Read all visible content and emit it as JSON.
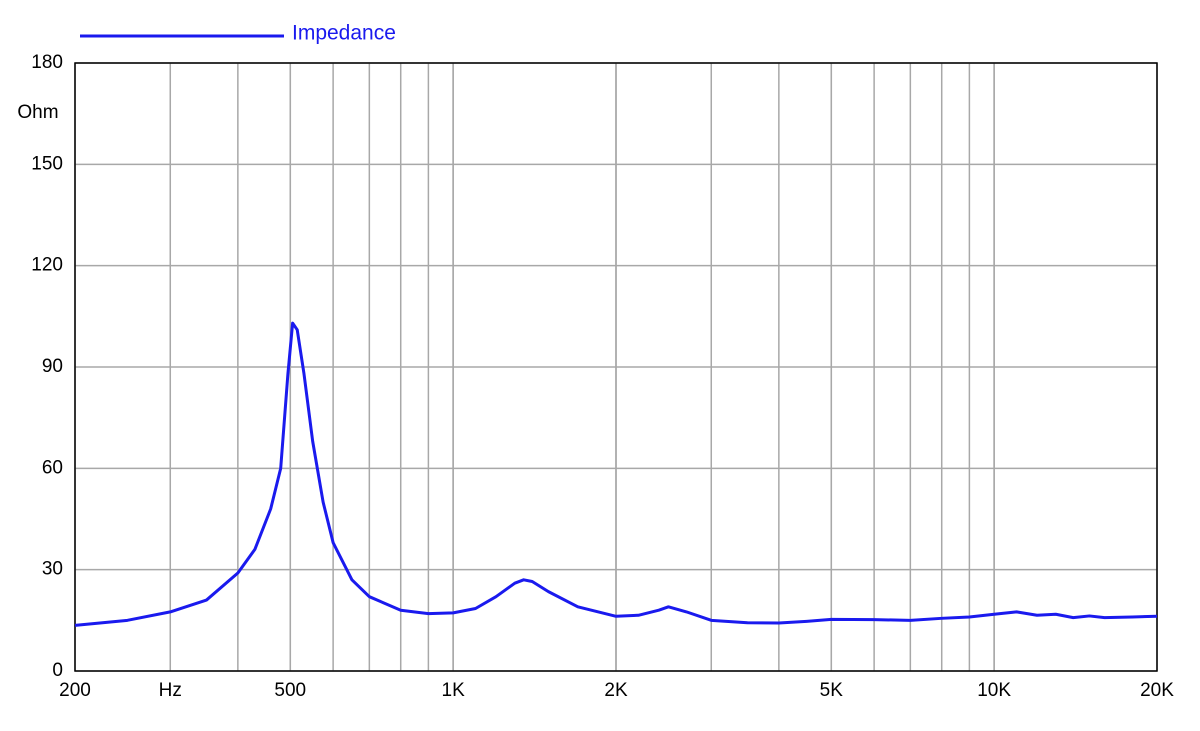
{
  "chart_data": {
    "type": "line",
    "ylabel": "Ohm",
    "x": [
      200,
      250,
      300,
      350,
      400,
      430,
      460,
      480,
      495,
      505,
      515,
      530,
      550,
      575,
      600,
      650,
      700,
      800,
      900,
      1000,
      1100,
      1200,
      1300,
      1350,
      1400,
      1500,
      1700,
      2000,
      2200,
      2400,
      2500,
      2700,
      3000,
      3500,
      4000,
      4500,
      5000,
      6000,
      7000,
      8000,
      9000,
      10000,
      11000,
      12000,
      13000,
      14000,
      15000,
      16000,
      18000,
      20000
    ],
    "series": [
      {
        "name": "Impedance",
        "color": "#1a1aee",
        "values": [
          13.5,
          15,
          17.5,
          21,
          29,
          36,
          48,
          60,
          88,
          103,
          101,
          88,
          68,
          50,
          38,
          27,
          22,
          18,
          17,
          17.2,
          18.5,
          22,
          26,
          27,
          26.5,
          23.5,
          19,
          16.2,
          16.5,
          18,
          19,
          17.5,
          15,
          14.3,
          14.2,
          14.7,
          15.3,
          15.2,
          15,
          15.6,
          16,
          16.8,
          17.5,
          16.5,
          16.8,
          15.8,
          16.3,
          15.8,
          16,
          16.2
        ]
      }
    ],
    "xscale": "log",
    "xlim": [
      200,
      20000
    ],
    "xticks": [
      200,
      {
        "value": 300,
        "label": "Hz"
      },
      500,
      {
        "value": 1000,
        "label": "1K"
      },
      {
        "value": 2000,
        "label": "2K"
      },
      {
        "value": 5000,
        "label": "5K"
      },
      {
        "value": 10000,
        "label": "10K"
      },
      {
        "value": 20000,
        "label": "20K"
      }
    ],
    "ylim": [
      0,
      180
    ],
    "yticks": [
      0,
      30,
      60,
      90,
      120,
      150,
      180
    ],
    "grid": true,
    "minor_grid": true,
    "legend": "top-left"
  }
}
